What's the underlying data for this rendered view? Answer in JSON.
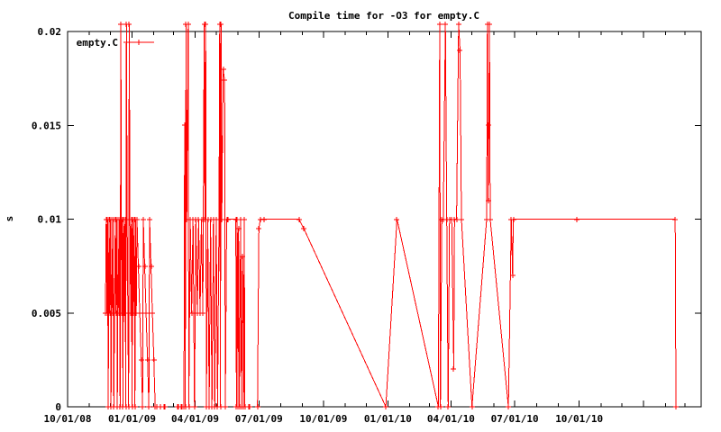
{
  "window": {
    "background": "#ffffff",
    "foreground": "#000000"
  },
  "chart_data": {
    "type": "line",
    "title": "Compile time for -O3 for empty.C",
    "xlabel": "",
    "ylabel": "s",
    "grid": false,
    "axes": {
      "x_range_dates": [
        "2008-10-01",
        "2011-03-24"
      ],
      "ylim": [
        0,
        0.02
      ],
      "y_ticks": [
        {
          "value": 0,
          "label": "0"
        },
        {
          "value": 0.005,
          "label": "0.005"
        },
        {
          "value": 0.01,
          "label": "0.01"
        },
        {
          "value": 0.015,
          "label": "0.015"
        },
        {
          "value": 0.02,
          "label": "0.02"
        }
      ],
      "x_major_ticks": [
        {
          "date": "2008-10-01",
          "label": "10/01/08"
        },
        {
          "date": "2009-01-01",
          "label": "01/01/09"
        },
        {
          "date": "2009-04-01",
          "label": "04/01/09"
        },
        {
          "date": "2009-07-01",
          "label": "07/01/09"
        },
        {
          "date": "2009-10-01",
          "label": "10/01/09"
        },
        {
          "date": "2010-01-01",
          "label": "01/01/10"
        },
        {
          "date": "2010-04-01",
          "label": "04/01/10"
        },
        {
          "date": "2010-07-01",
          "label": "07/01/10"
        },
        {
          "date": "2010-10-01",
          "label": "10/01/10"
        }
      ],
      "x_minor_ticks": "monthly"
    },
    "legend": {
      "position": "top-left",
      "entries": [
        {
          "label": "empty.C",
          "color": "#ff0000"
        }
      ]
    },
    "series": [
      {
        "name": "empty.C",
        "color": "#ff0000",
        "style": "linespoints",
        "marker": "plus",
        "clip_max": 0.02,
        "segments": [
          [
            [
              "2008-11-24",
              0.005
            ],
            [
              "2008-11-25",
              0.01
            ],
            [
              "2008-11-26",
              0.005
            ],
            [
              "2008-11-27",
              0.01
            ],
            [
              "2008-11-28",
              0
            ],
            [
              "2008-11-29",
              0.01
            ],
            [
              "2008-11-30",
              0.005
            ],
            [
              "2008-12-01",
              0.01
            ],
            [
              "2008-12-02",
              0
            ],
            [
              "2008-12-03",
              0.01
            ],
            [
              "2008-12-04",
              0.005
            ],
            [
              "2008-12-05",
              0.01
            ],
            [
              "2008-12-06",
              0
            ],
            [
              "2008-12-07",
              0.005
            ],
            [
              "2008-12-08",
              0.01
            ],
            [
              "2008-12-09",
              0.005
            ],
            [
              "2008-12-10",
              0.01
            ],
            [
              "2008-12-11",
              0
            ],
            [
              "2008-12-12",
              0.01
            ],
            [
              "2008-12-13",
              0.005
            ],
            [
              "2008-12-14",
              0.01
            ],
            [
              "2008-12-15",
              0
            ],
            [
              "2008-12-16",
              0.0204
            ],
            [
              "2008-12-17",
              0.005
            ],
            [
              "2008-12-18",
              0.01
            ],
            [
              "2008-12-19",
              0
            ],
            [
              "2008-12-20",
              0.01
            ],
            [
              "2008-12-21",
              0.005
            ],
            [
              "2008-12-22",
              0.01
            ],
            [
              "2008-12-23",
              0
            ],
            [
              "2008-12-24",
              0.0204
            ],
            [
              "2008-12-25",
              0.01
            ],
            [
              "2008-12-26",
              0.005
            ],
            [
              "2008-12-27",
              0
            ],
            [
              "2008-12-28",
              0.0204
            ],
            [
              "2008-12-29",
              0.01
            ],
            [
              "2008-12-30",
              0.005
            ],
            [
              "2008-12-31",
              0.01
            ],
            [
              "2009-01-01",
              0
            ],
            [
              "2009-01-02",
              0.01
            ],
            [
              "2009-01-03",
              0.005
            ],
            [
              "2009-01-04",
              0.01
            ],
            [
              "2009-01-05",
              0
            ],
            [
              "2009-01-06",
              0.01
            ],
            [
              "2009-01-07",
              0.005
            ],
            [
              "2009-01-08",
              0.01
            ],
            [
              "2009-01-10",
              0.0075
            ],
            [
              "2009-01-12",
              0.005
            ],
            [
              "2009-01-14",
              0.0025
            ],
            [
              "2009-01-16",
              0
            ],
            [
              "2009-01-17",
              0.01
            ],
            [
              "2009-01-19",
              0.0075
            ],
            [
              "2009-01-21",
              0.005
            ],
            [
              "2009-01-23",
              0.0025
            ],
            [
              "2009-01-25",
              0
            ],
            [
              "2009-01-26",
              0.01
            ],
            [
              "2009-01-28",
              0.0075
            ],
            [
              "2009-01-30",
              0.005
            ],
            [
              "2009-02-01",
              0.0025
            ],
            [
              "2009-02-03",
              0
            ],
            [
              "2009-02-05",
              0
            ]
          ],
          [
            [
              "2009-02-10",
              0
            ],
            [
              "2009-02-11",
              0
            ]
          ],
          [
            [
              "2009-02-16",
              0
            ],
            [
              "2009-02-17",
              0
            ]
          ],
          [
            [
              "2009-03-07",
              0
            ],
            [
              "2009-03-08",
              0
            ]
          ],
          [
            [
              "2009-03-12",
              0
            ],
            [
              "2009-03-13",
              0
            ]
          ],
          [
            [
              "2009-03-16",
              0
            ],
            [
              "2009-03-17",
              0.015
            ],
            [
              "2009-03-18",
              0
            ],
            [
              "2009-03-19",
              0.0204
            ],
            [
              "2009-03-20",
              0.01
            ],
            [
              "2009-03-22",
              0.0204
            ],
            [
              "2009-03-23",
              0
            ],
            [
              "2009-03-25",
              0.01
            ],
            [
              "2009-03-27",
              0.005
            ],
            [
              "2009-03-29",
              0.01
            ],
            [
              "2009-03-31",
              0
            ],
            [
              "2009-04-02",
              0.01
            ],
            [
              "2009-04-04",
              0.005
            ],
            [
              "2009-04-06",
              0.01
            ],
            [
              "2009-04-08",
              0.005
            ],
            [
              "2009-04-10",
              0.01
            ],
            [
              "2009-04-12",
              0.005
            ],
            [
              "2009-04-14",
              0.0204
            ],
            [
              "2009-04-15",
              0.01
            ],
            [
              "2009-04-16",
              0.0204
            ],
            [
              "2009-04-17",
              0
            ],
            [
              "2009-04-19",
              0.01
            ],
            [
              "2009-04-21",
              0
            ],
            [
              "2009-04-23",
              0.01
            ],
            [
              "2009-04-25",
              0
            ],
            [
              "2009-04-27",
              0.01
            ],
            [
              "2009-04-29",
              0
            ],
            [
              "2009-05-01",
              0.01
            ],
            [
              "2009-05-03",
              0
            ],
            [
              "2009-05-05",
              0.01
            ],
            [
              "2009-05-06",
              0.0204
            ],
            [
              "2009-05-07",
              0
            ],
            [
              "2009-05-08",
              0.0204
            ],
            [
              "2009-05-09",
              0.01
            ],
            [
              "2009-05-11",
              0.018
            ],
            [
              "2009-05-13",
              0.0174
            ],
            [
              "2009-05-14",
              0
            ],
            [
              "2009-05-16",
              0.01
            ],
            [
              "2009-05-18",
              0.01
            ],
            [
              "2009-05-29",
              0.01
            ],
            [
              "2009-05-30",
              0
            ],
            [
              "2009-05-31",
              0.01
            ],
            [
              "2009-06-01",
              0
            ],
            [
              "2009-06-02",
              0.0095
            ],
            [
              "2009-06-03",
              0
            ],
            [
              "2009-06-05",
              0.01
            ],
            [
              "2009-06-06",
              0
            ],
            [
              "2009-06-08",
              0.008
            ],
            [
              "2009-06-09",
              0
            ],
            [
              "2009-06-10",
              0.01
            ],
            [
              "2009-06-11",
              0
            ]
          ],
          [
            [
              "2009-06-17",
              0
            ],
            [
              "2009-06-18",
              0
            ]
          ],
          [
            [
              "2009-06-29",
              0
            ],
            [
              "2009-07-01",
              0.0095
            ],
            [
              "2009-07-03",
              0.01
            ],
            [
              "2009-07-08",
              0.01
            ],
            [
              "2009-08-27",
              0.01
            ],
            [
              "2009-09-03",
              0.0095
            ],
            [
              "2009-12-29",
              0
            ],
            [
              "2010-01-14",
              0.01
            ],
            [
              "2010-03-14",
              0
            ],
            [
              "2010-03-16",
              0.0204
            ],
            [
              "2010-03-17",
              0
            ],
            [
              "2010-03-19",
              0.01
            ],
            [
              "2010-03-21",
              0.01
            ],
            [
              "2010-03-24",
              0.0204
            ],
            [
              "2010-03-26",
              0.01
            ],
            [
              "2010-03-28",
              0
            ],
            [
              "2010-03-30",
              0.01
            ],
            [
              "2010-04-02",
              0.01
            ],
            [
              "2010-04-05",
              0.002
            ],
            [
              "2010-04-06",
              0.01
            ],
            [
              "2010-04-09",
              0.01
            ],
            [
              "2010-04-12",
              0.0204
            ],
            [
              "2010-04-14",
              0.019
            ],
            [
              "2010-04-16",
              0.01
            ],
            [
              "2010-05-01",
              0
            ],
            [
              "2010-05-22",
              0.01
            ],
            [
              "2010-05-23",
              0.0204
            ],
            [
              "2010-05-24",
              0.011
            ],
            [
              "2010-05-25",
              0.015
            ],
            [
              "2010-05-26",
              0.0204
            ],
            [
              "2010-05-27",
              0.01
            ],
            [
              "2010-06-22",
              0
            ],
            [
              "2010-06-26",
              0.01
            ],
            [
              "2010-06-28",
              0.007
            ],
            [
              "2010-06-29",
              0.01
            ],
            [
              "2010-09-28",
              0.01
            ],
            [
              "2011-02-15",
              0.01
            ],
            [
              "2011-02-16",
              0
            ]
          ]
        ]
      }
    ]
  }
}
